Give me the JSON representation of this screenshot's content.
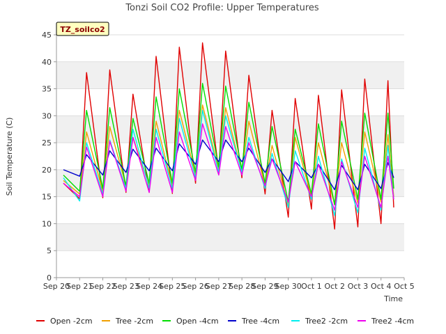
{
  "chart_data": {
    "type": "line",
    "title": "Tonzi Soil CO2 Profile: Upper Temperatures",
    "xlabel": "Time",
    "ylabel": "Soil Temperature (C)",
    "site_tag": "TZ_soilco2",
    "ylim": [
      0,
      45
    ],
    "yticks": [
      0,
      5,
      10,
      15,
      20,
      25,
      30,
      35,
      40,
      45
    ],
    "xlim": [
      0,
      15
    ],
    "xtick_labels": [
      "Sep 20",
      "Sep 21",
      "Sep 22",
      "Sep 23",
      "Sep 24",
      "Sep 25",
      "Sep 26",
      "Sep 27",
      "Sep 28",
      "Sep 29",
      "Sep 30",
      "Oct 1",
      "Oct 2",
      "Oct 3",
      "Oct 4",
      "Oct 5"
    ],
    "grid": true,
    "legend_position": "bottom",
    "x_days": [
      0.3,
      1.0,
      1.3,
      2.0,
      2.3,
      3.0,
      3.3,
      4.0,
      4.3,
      5.0,
      5.3,
      6.0,
      6.3,
      7.0,
      7.3,
      8.0,
      8.3,
      9.0,
      9.3,
      10.0,
      10.3,
      11.0,
      11.3,
      12.0,
      12.3,
      13.0,
      13.3,
      14.0,
      14.3,
      14.55
    ],
    "series": [
      {
        "name": "Open -2cm",
        "color": "#e00000",
        "values": [
          17.5,
          14.6,
          38.0,
          14.8,
          38.5,
          15.8,
          34.0,
          15.8,
          41.0,
          15.6,
          42.7,
          17.5,
          43.5,
          19.8,
          42.0,
          18.5,
          37.5,
          15.5,
          31.0,
          11.2,
          33.2,
          12.7,
          33.8,
          9.0,
          34.8,
          9.4,
          36.8,
          10.0,
          36.5,
          13.0
        ]
      },
      {
        "name": "Tree -2cm",
        "color": "#f0a000",
        "values": [
          18.0,
          15.5,
          27.0,
          16.0,
          28.0,
          17.0,
          26.0,
          17.0,
          29.0,
          17.0,
          31.0,
          19.0,
          32.0,
          20.0,
          31.5,
          19.5,
          29.0,
          17.0,
          24.5,
          13.5,
          26.0,
          15.0,
          25.0,
          13.5,
          25.0,
          13.8,
          27.0,
          14.0,
          26.5,
          15.0
        ]
      },
      {
        "name": "Open -4cm",
        "color": "#00dd00",
        "values": [
          19.0,
          16.0,
          31.0,
          16.5,
          31.5,
          17.0,
          29.5,
          17.5,
          33.5,
          17.5,
          35.0,
          19.5,
          36.0,
          20.5,
          35.5,
          20.0,
          32.5,
          17.5,
          28.0,
          14.0,
          27.5,
          15.5,
          28.5,
          13.5,
          29.0,
          14.5,
          30.5,
          14.5,
          30.5,
          16.5
        ]
      },
      {
        "name": "Tree -4cm",
        "color": "#0000cc",
        "values": [
          20.0,
          18.8,
          22.8,
          19.0,
          23.5,
          19.5,
          23.8,
          19.8,
          24.0,
          19.8,
          24.8,
          21.0,
          25.5,
          21.5,
          25.5,
          21.5,
          24.0,
          19.5,
          22.0,
          17.8,
          21.5,
          18.5,
          21.0,
          16.3,
          20.8,
          16.3,
          21.0,
          16.5,
          21.3,
          18.5
        ]
      },
      {
        "name": "Tree2 -2cm",
        "color": "#00eeee",
        "values": [
          18.5,
          14.2,
          25.0,
          15.5,
          25.5,
          16.5,
          27.5,
          16.5,
          27.5,
          16.5,
          29.5,
          18.5,
          31.0,
          19.5,
          30.0,
          19.5,
          26.0,
          16.5,
          23.0,
          13.0,
          23.5,
          14.5,
          22.5,
          11.5,
          22.0,
          12.0,
          24.0,
          12.5,
          24.5,
          14.5
        ]
      },
      {
        "name": "Tree2 -4cm",
        "color": "#ee00ee",
        "values": [
          17.5,
          15.0,
          24.2,
          15.0,
          25.3,
          16.0,
          26.0,
          15.8,
          26.0,
          15.8,
          27.0,
          18.0,
          28.5,
          19.0,
          28.0,
          19.0,
          25.0,
          17.0,
          22.0,
          14.0,
          21.5,
          15.0,
          21.0,
          12.5,
          21.5,
          13.0,
          22.5,
          13.0,
          22.5,
          14.5
        ]
      }
    ]
  }
}
